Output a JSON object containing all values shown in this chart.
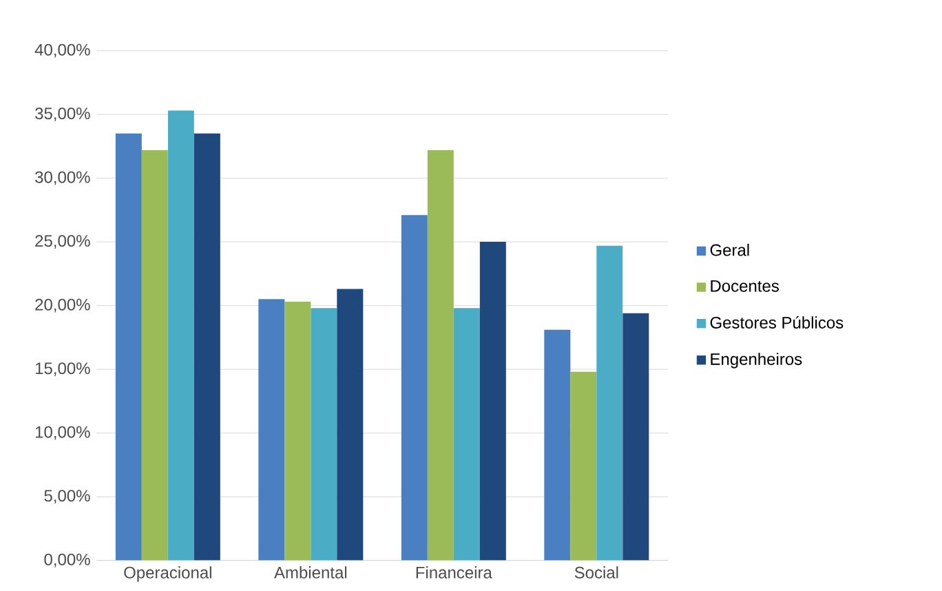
{
  "chart_data": {
    "type": "bar",
    "categories": [
      "Operacional",
      "Ambiental",
      "Financeira",
      "Social"
    ],
    "series": [
      {
        "name": "Geral",
        "color": "#4a7fc1",
        "values": [
          33.5,
          20.5,
          27.1,
          18.1
        ]
      },
      {
        "name": "Docentes",
        "color": "#9bbb59",
        "values": [
          32.2,
          20.3,
          32.2,
          14.8
        ]
      },
      {
        "name": "Gestores Públicos",
        "color": "#4bacc6",
        "values": [
          35.3,
          19.8,
          19.8,
          24.7
        ]
      },
      {
        "name": "Engenheiros",
        "color": "#1f497d",
        "values": [
          33.5,
          21.3,
          25.0,
          19.4
        ]
      }
    ],
    "ylim": [
      0,
      40
    ],
    "yticks": [
      {
        "value": 0,
        "label": "0,00%"
      },
      {
        "value": 5,
        "label": "5,00%"
      },
      {
        "value": 10,
        "label": "10,00%"
      },
      {
        "value": 15,
        "label": "15,00%"
      },
      {
        "value": 20,
        "label": "20,00%"
      },
      {
        "value": 25,
        "label": "25,00%"
      },
      {
        "value": 30,
        "label": "30,00%"
      },
      {
        "value": 35,
        "label": "35,00%"
      },
      {
        "value": 40,
        "label": "40,00%"
      }
    ],
    "grid": "y",
    "legend": "right"
  }
}
